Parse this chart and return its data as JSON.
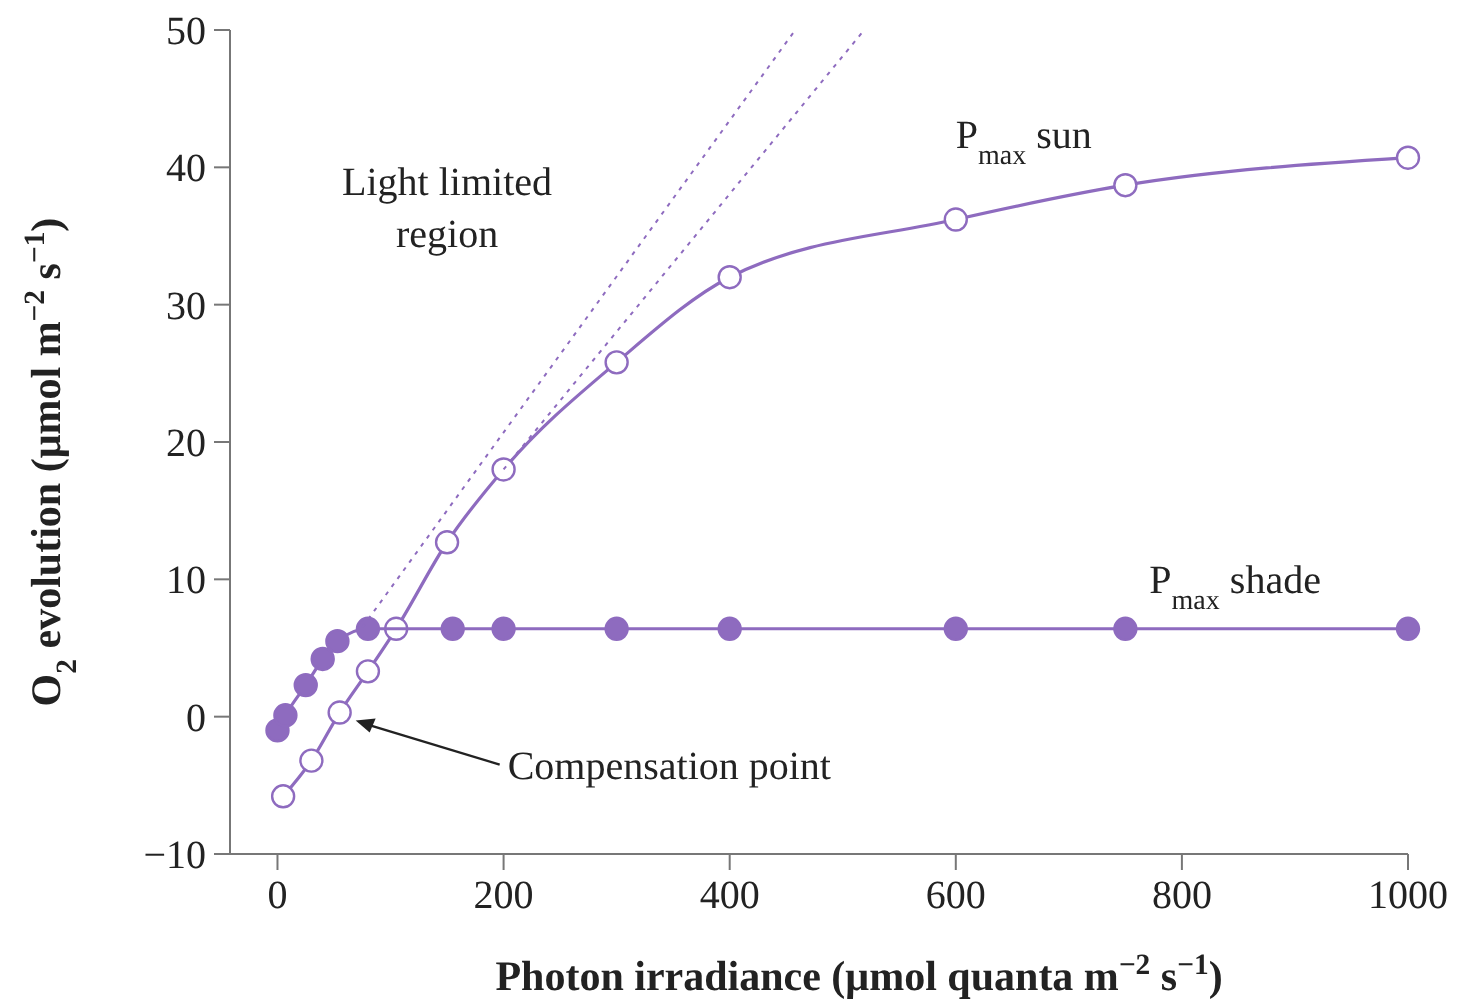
{
  "chart_data": {
    "type": "line",
    "xlabel": "Photon irradiance (μmol quanta m$^{−2}$ s$^{−1}$)",
    "ylabel": "O$_{2}$ evolution (μmol m$^{−2}$ s$^{−1}$)",
    "xlim": [
      -42,
      1000
    ],
    "xticks": [
      0,
      200,
      400,
      600,
      800,
      1000
    ],
    "ylim": [
      -10,
      50
    ],
    "yticks": [
      {
        "value": -10,
        "label": "−10"
      },
      0,
      10,
      20,
      30,
      40,
      50
    ],
    "grid": false,
    "marker": "circle",
    "series": [
      {
        "name": "P$_{max}$ sun",
        "color": "#8e6bbf",
        "x": [
          5,
          30,
          55,
          80,
          105,
          150,
          200,
          300,
          400,
          600,
          750,
          1000
        ],
        "values": [
          -5.8,
          -3.2,
          0.3,
          3.3,
          6.4,
          12.7,
          18,
          25.8,
          32,
          36.2,
          38.7,
          40.7
        ]
      },
      {
        "name": "P$_{max}$ shade",
        "color": "#8e6bbf",
        "x": [
          0,
          7,
          25,
          40,
          53,
          80,
          155,
          200,
          300,
          400,
          600,
          750,
          1000
        ],
        "values": [
          -1,
          0.1,
          2.3,
          4.2,
          5.5,
          6.4,
          6.4,
          6.4,
          6.4,
          6.4,
          6.4,
          6.4,
          6.4
        ]
      },
      {
        "type": "line",
        "color": "#8e6bbf",
        "line_style": "dotted",
        "marker": "none",
        "x": [
          75,
          458
        ],
        "values": [
          6.5,
          50
        ]
      },
      {
        "type": "line",
        "color": "#8e6bbf",
        "line_style": "dotted",
        "marker": "none",
        "x": [
          200,
          519
        ],
        "values": [
          18,
          50
        ]
      }
    ],
    "annotations": [
      "Light limited region",
      "Compensation point"
    ]
  }
}
